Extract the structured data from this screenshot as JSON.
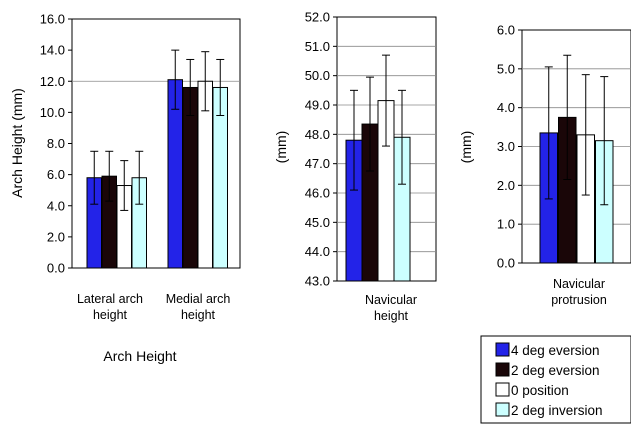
{
  "legend": [
    {
      "label": "4 deg eversion",
      "color": "#2323E8"
    },
    {
      "label": "2 deg eversion",
      "color": "#1A0608"
    },
    {
      "label": "0 position",
      "color": "#FFFFFF"
    },
    {
      "label": "2 deg inversion",
      "color": "#CCFFFF"
    }
  ],
  "bottom_title": "Arch Height",
  "chart_data": [
    {
      "type": "bar",
      "ylabel": "Arch Height (mm)",
      "ylim": [
        0,
        16
      ],
      "yticks": [
        "0.0",
        "2.0",
        "4.0",
        "6.0",
        "8.0",
        "10.0",
        "12.0",
        "14.0",
        "16.0"
      ],
      "gridlines": [
        12
      ],
      "categories": [
        [
          "Lateral arch",
          "height"
        ],
        [
          "Medial arch",
          "height"
        ]
      ],
      "series": [
        {
          "name": "4 deg eversion",
          "values": [
            5.8,
            12.1
          ],
          "errors": [
            1.7,
            1.9
          ]
        },
        {
          "name": "2 deg eversion",
          "values": [
            5.9,
            11.6
          ],
          "errors": [
            1.6,
            1.8
          ]
        },
        {
          "name": "0 position",
          "values": [
            5.3,
            12.0
          ],
          "errors": [
            1.6,
            1.9
          ]
        },
        {
          "name": "2 deg inversion",
          "values": [
            5.8,
            11.6
          ],
          "errors": [
            1.7,
            1.8
          ]
        }
      ]
    },
    {
      "type": "bar",
      "ylabel": "(mm)",
      "ylim": [
        43,
        52
      ],
      "yticks": [
        "43.0",
        "44.0",
        "45.0",
        "46.0",
        "47.0",
        "48.0",
        "49.0",
        "50.0",
        "51.0",
        "52.0"
      ],
      "gridlines": [
        44,
        45,
        46,
        47,
        48,
        49,
        50,
        51
      ],
      "categories": [
        [
          "Navicular",
          "height"
        ]
      ],
      "series": [
        {
          "name": "4 deg eversion",
          "values": [
            47.8
          ],
          "errors": [
            1.7
          ]
        },
        {
          "name": "2 deg eversion",
          "values": [
            48.35
          ],
          "errors": [
            1.6
          ]
        },
        {
          "name": "0 position",
          "values": [
            49.15
          ],
          "errors": [
            1.55
          ]
        },
        {
          "name": "2 deg inversion",
          "values": [
            47.9
          ],
          "errors": [
            1.6
          ]
        }
      ]
    },
    {
      "type": "bar",
      "ylabel": "(mm)",
      "ylim": [
        0,
        6
      ],
      "yticks": [
        "0.0",
        "1.0",
        "2.0",
        "3.0",
        "4.0",
        "5.0",
        "6.0"
      ],
      "gridlines": [
        1,
        2,
        3,
        4,
        5
      ],
      "categories": [
        [
          "Navicular",
          "protrusion"
        ]
      ],
      "series": [
        {
          "name": "4 deg eversion",
          "values": [
            3.35
          ],
          "errors": [
            1.7
          ]
        },
        {
          "name": "2 deg eversion",
          "values": [
            3.75
          ],
          "errors": [
            1.6
          ]
        },
        {
          "name": "0 position",
          "values": [
            3.3
          ],
          "errors": [
            1.55
          ]
        },
        {
          "name": "2 deg inversion",
          "values": [
            3.15
          ],
          "errors": [
            1.65
          ]
        }
      ]
    }
  ]
}
